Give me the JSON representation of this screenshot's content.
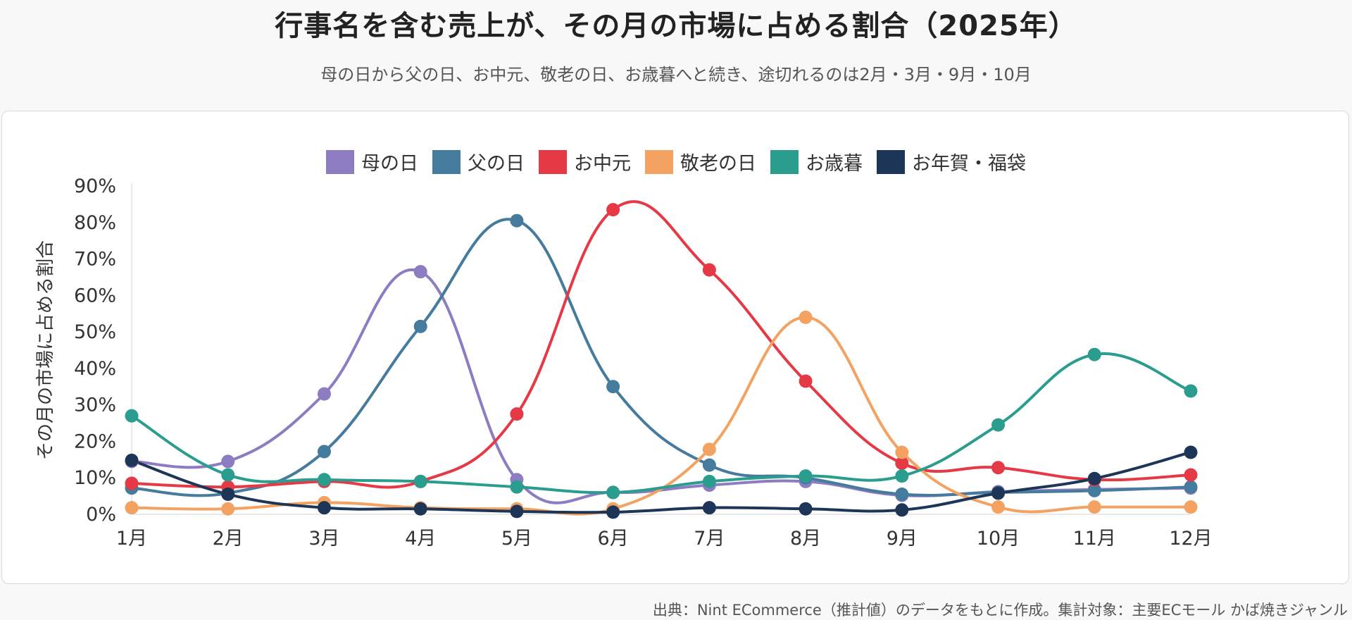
{
  "title": "行事名を含む売上が、その月の市場に占める割合（2025年）",
  "subtitle": "母の日から父の日、お中元、敬老の日、お歳暮へと続き、途切れるのは2月・3月・9月・10月",
  "source": "出典：Nint ECommerce（推計値）のデータをもとに作成。集計対象：主要ECモール かば焼きジャンル",
  "chart_data": {
    "type": "line",
    "ylabel": "その月の市場に占める割合",
    "xlabel": "",
    "categories": [
      "1月",
      "2月",
      "3月",
      "4月",
      "5月",
      "6月",
      "7月",
      "8月",
      "9月",
      "10月",
      "11月",
      "12月"
    ],
    "yticks": [
      "0%",
      "10%",
      "20%",
      "30%",
      "40%",
      "50%",
      "60%",
      "70%",
      "80%",
      "90%"
    ],
    "ylim": [
      0,
      90
    ],
    "legend_position": "top",
    "grid": false,
    "series": [
      {
        "name": "母の日",
        "color": "#8e7cc3",
        "values": [
          14.5,
          14.5,
          33,
          66.5,
          9.5,
          6,
          8,
          9,
          5.2,
          6.2,
          6.8,
          7.2
        ]
      },
      {
        "name": "父の日",
        "color": "#457b9d",
        "values": [
          7.2,
          5.8,
          17.2,
          51.5,
          80.5,
          35,
          13.5,
          10,
          5.5,
          6,
          6.5,
          7.5
        ]
      },
      {
        "name": "お中元",
        "color": "#e63946",
        "values": [
          8.5,
          7.5,
          9,
          9,
          27.5,
          83.5,
          67,
          36.5,
          14,
          12.8,
          9.5,
          10.8
        ]
      },
      {
        "name": "敬老の日",
        "color": "#f4a261",
        "values": [
          1.8,
          1.5,
          3.2,
          1.8,
          1.5,
          1.5,
          17.8,
          54,
          17,
          2,
          2,
          2
        ]
      },
      {
        "name": "お歳暮",
        "color": "#2a9d8f",
        "values": [
          27,
          10.8,
          9.5,
          9,
          7.5,
          6,
          9,
          10.5,
          10.5,
          24.5,
          43.8,
          33.8
        ]
      },
      {
        "name": "お年賀・福袋",
        "color": "#1d3557",
        "values": [
          14.8,
          5.5,
          1.8,
          1.5,
          0.8,
          0.6,
          1.8,
          1.5,
          1.2,
          5.8,
          9.8,
          17
        ]
      }
    ]
  }
}
